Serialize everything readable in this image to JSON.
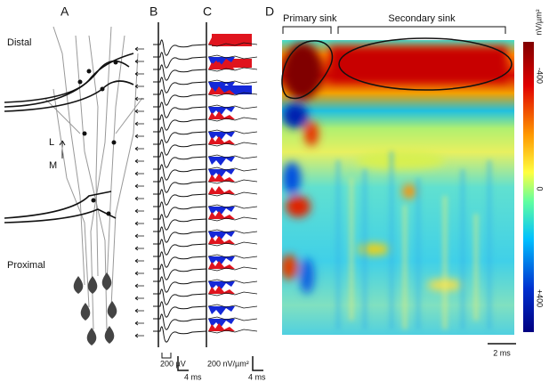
{
  "panels": {
    "a": {
      "label": "A",
      "distal": "Distal",
      "proximal": "Proximal",
      "axis_l": "L",
      "axis_m": "M"
    },
    "b": {
      "label": "B",
      "scale_amplitude": "200 µV",
      "scale_time": "4 ms"
    },
    "c": {
      "label": "C",
      "scale_amplitude": "200 nV/µm²",
      "scale_time": "4 ms"
    },
    "d": {
      "label": "D",
      "primary": "Primary sink",
      "secondary": "Secondary sink",
      "colorbar_unit": "nV/µm²",
      "colorbar_labels": [
        "-400",
        "0",
        "+400"
      ],
      "scale_time": "2 ms"
    }
  }
}
